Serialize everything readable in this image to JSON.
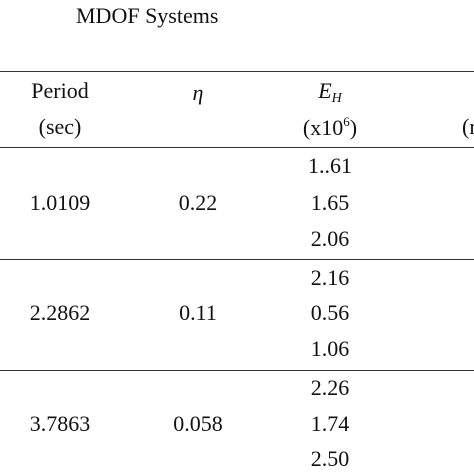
{
  "caption": "MDOF Systems",
  "headers": {
    "period_line1": "Period",
    "period_line2": "(sec)",
    "eta": "η",
    "eh_letter": "E",
    "eh_subscript": "H",
    "eh_unit_base": "(x10",
    "eh_unit_exponent": "6",
    "eh_unit_close": ")",
    "cut_col_fragment": "(r"
  },
  "groups": [
    {
      "period": "1.0109",
      "eta": "0.22",
      "eh": [
        "1..61",
        "1.65",
        "2.06"
      ]
    },
    {
      "period": "2.2862",
      "eta": "0.11",
      "eh": [
        "2.16",
        "0.56",
        "1.06"
      ]
    },
    {
      "period": "3.7863",
      "eta": "0.058",
      "eh": [
        "2.26",
        "1.74",
        "2.50"
      ]
    }
  ]
}
